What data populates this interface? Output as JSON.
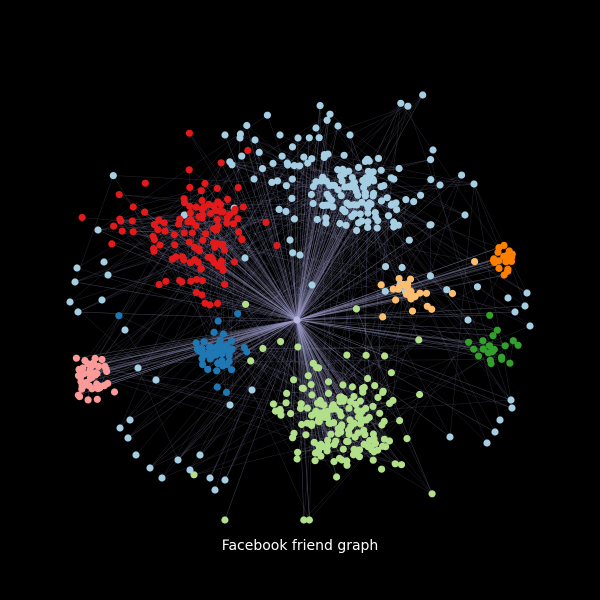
{
  "title": "Facebook friend graph",
  "colors": {
    "background": "#000000",
    "edge": "#9a9ac8",
    "hub": "#b8b8e0",
    "text": "#ffffff"
  },
  "chart_data": {
    "type": "network",
    "communities": [
      {
        "id": "light-blue",
        "color": "#a6cee3"
      },
      {
        "id": "red",
        "color": "#e31a1c"
      },
      {
        "id": "light-green",
        "color": "#b2df8a"
      },
      {
        "id": "dark-blue",
        "color": "#1f78b4"
      },
      {
        "id": "pink",
        "color": "#fb9a99"
      },
      {
        "id": "orange",
        "color": "#ff7f00"
      },
      {
        "id": "light-orange",
        "color": "#fdbf6f"
      },
      {
        "id": "green",
        "color": "#33a02c"
      }
    ]
  }
}
